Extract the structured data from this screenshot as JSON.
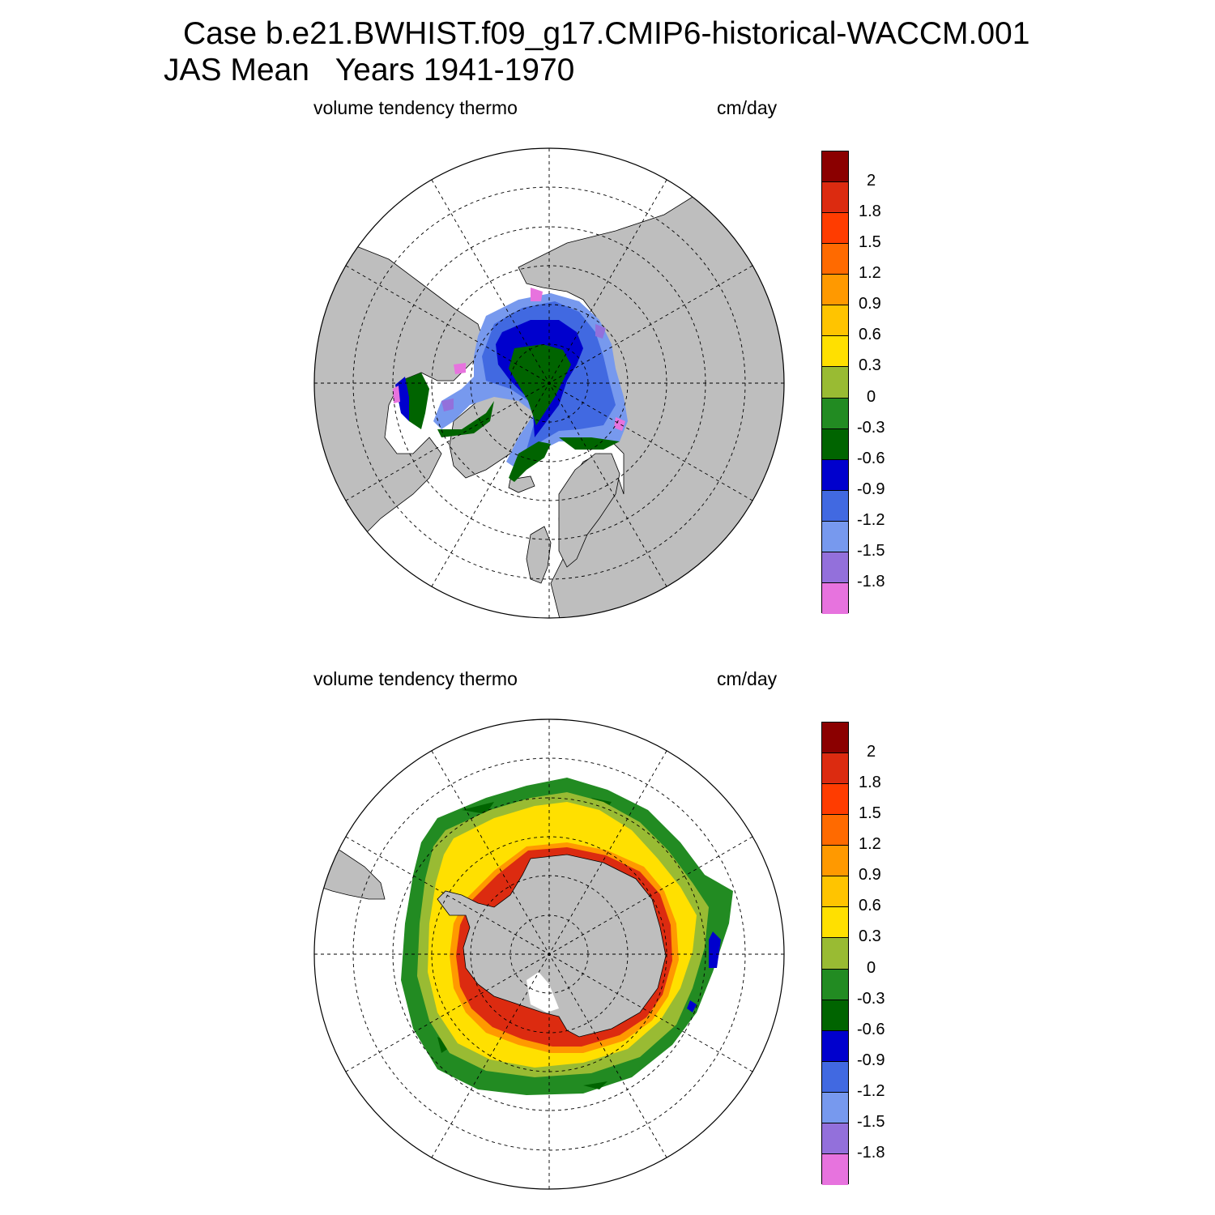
{
  "header": {
    "title_line1": "Case b.e21.BWHIST.f09_g17.CMIP6-historical-WACCM.001",
    "title_line2": "JAS Mean   Years 1941-1970"
  },
  "panels": [
    {
      "id": "north",
      "left_label": "volume tendency thermo",
      "right_label": "cm/day",
      "hemisphere": "Northern Hemisphere polar stereographic"
    },
    {
      "id": "south",
      "left_label": "volume tendency thermo",
      "right_label": "cm/day",
      "hemisphere": "Southern Hemisphere polar stereographic"
    }
  ],
  "colorbar": {
    "labels": [
      "2",
      "1.8",
      "1.5",
      "1.2",
      "0.9",
      "0.6",
      "0.3",
      "0",
      "-0.3",
      "-0.6",
      "-0.9",
      "-1.2",
      "-1.5",
      "-1.8"
    ],
    "colors": [
      "#8b0000",
      "#dc2b10",
      "#ff3c00",
      "#ff6a00",
      "#ff9900",
      "#ffc400",
      "#ffe000",
      "#99bb33",
      "#228b22",
      "#006400",
      "#0000cd",
      "#4169e1",
      "#7799ee",
      "#9370db",
      "#e773de"
    ]
  },
  "style": {
    "land": "#bebebe",
    "ocean": "#ffffff"
  }
}
